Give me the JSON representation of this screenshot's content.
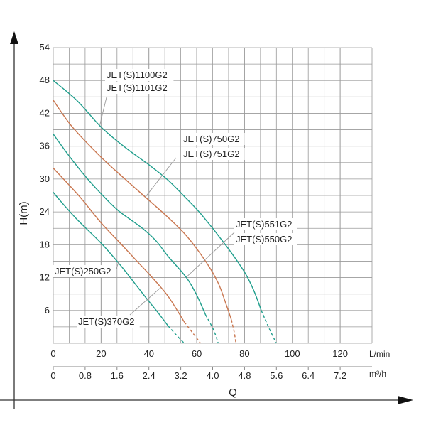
{
  "chart_data": {
    "type": "line",
    "title": "",
    "ylabel": "H(m)",
    "xlabel": "Q",
    "x_unit_primary": "L/min",
    "x_unit_secondary": "m³/h",
    "xlim_lmin": [
      0,
      133.33
    ],
    "xlim_m3h": [
      0,
      8
    ],
    "ylim": [
      0,
      54
    ],
    "grid": true,
    "y_ticks": [
      "6",
      "12",
      "18",
      "24",
      "30",
      "36",
      "42",
      "48",
      "54"
    ],
    "x_ticks_lmin": [
      "0",
      "20",
      "40",
      "60",
      "80",
      "100",
      "120"
    ],
    "x_ticks_m3h": [
      "0",
      "0.8",
      "1.6",
      "2.4",
      "3.2",
      "4.0",
      "4.8",
      "5.6",
      "6.4",
      "7.2"
    ],
    "colors": {
      "teal": "#1f9e8c",
      "orange": "#c9764f"
    },
    "series": [
      {
        "name": "JET(S)1100G2 / JET(S)1101G2",
        "labels": [
          "JET(S)1100G2",
          "JET(S)1101G2"
        ],
        "color": "teal",
        "points": [
          [
            0,
            48
          ],
          [
            10,
            44.3
          ],
          [
            20,
            39.5
          ],
          [
            30,
            35.8
          ],
          [
            40,
            32.6
          ],
          [
            48,
            29.8
          ],
          [
            56,
            26.3
          ],
          [
            62,
            23.5
          ],
          [
            72,
            18
          ],
          [
            80,
            13
          ],
          [
            84,
            9.5
          ],
          [
            87,
            6
          ]
        ],
        "dashed": [
          [
            87,
            6
          ],
          [
            90,
            3
          ],
          [
            93.3,
            0
          ]
        ]
      },
      {
        "name": "JET(S)750G2 / JET(S)751G2",
        "labels": [
          "JET(S)750G2",
          "JET(S)751G2"
        ],
        "color": "orange",
        "points": [
          [
            0,
            44.4
          ],
          [
            8,
            39.5
          ],
          [
            20,
            34
          ],
          [
            30,
            30
          ],
          [
            38.5,
            26.7
          ],
          [
            48,
            23
          ],
          [
            56,
            19.5
          ],
          [
            64,
            14.8
          ],
          [
            69,
            11
          ],
          [
            72,
            7.5
          ],
          [
            74.5,
            4.3
          ]
        ],
        "dashed": [
          [
            74.5,
            4.3
          ],
          [
            75.7,
            2
          ],
          [
            76.4,
            0
          ]
        ]
      },
      {
        "name": "JET(S)551G2 / JET(S)550G2",
        "labels": [
          "JET(S)551G2",
          "JET(S)550G2"
        ],
        "color": "teal",
        "points": [
          [
            0,
            38.2
          ],
          [
            7,
            34
          ],
          [
            14,
            30.2
          ],
          [
            20.7,
            27
          ],
          [
            27.3,
            24.2
          ],
          [
            37,
            21.1
          ],
          [
            43,
            18.7
          ],
          [
            48,
            15.9
          ],
          [
            55.7,
            12
          ],
          [
            60,
            8.8
          ],
          [
            63.7,
            5.2
          ]
        ],
        "dashed": [
          [
            63.7,
            5.2
          ],
          [
            67,
            2.5
          ],
          [
            69,
            0
          ]
        ]
      },
      {
        "name": "JET(S)370G2",
        "labels": [
          "JET(S)370G2"
        ],
        "color": "orange",
        "points": [
          [
            0,
            32
          ],
          [
            6,
            29.2
          ],
          [
            12,
            26.3
          ],
          [
            20,
            22
          ],
          [
            28,
            18.3
          ],
          [
            35,
            15
          ],
          [
            41,
            12.2
          ],
          [
            48,
            8.6
          ],
          [
            54.8,
            3.9
          ]
        ],
        "dashed": [
          [
            54.8,
            3.9
          ],
          [
            58.5,
            1.8
          ],
          [
            61.6,
            0
          ]
        ]
      },
      {
        "name": "JET(S)250G2",
        "labels": [
          "JET(S)250G2"
        ],
        "color": "teal",
        "points": [
          [
            0,
            27.6
          ],
          [
            2.4,
            26.3
          ],
          [
            10,
            22.6
          ],
          [
            20,
            18.3
          ],
          [
            28,
            14.3
          ],
          [
            34,
            11
          ],
          [
            39,
            8.2
          ],
          [
            44,
            5.5
          ],
          [
            48,
            3.2
          ]
        ],
        "dashed": [
          [
            48,
            3.2
          ],
          [
            51.5,
            1.5
          ],
          [
            54.8,
            0
          ]
        ]
      }
    ]
  }
}
